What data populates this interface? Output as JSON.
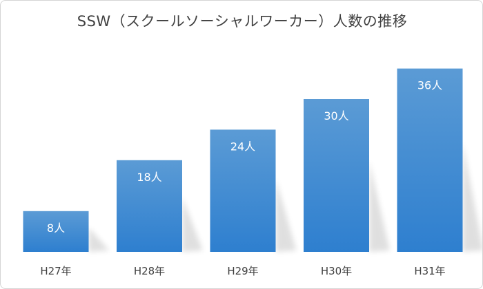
{
  "chart_data": {
    "type": "bar",
    "title": "SSW（スクールソーシャルワーカー）人数の推移",
    "categories": [
      "H27年",
      "H28年",
      "H29年",
      "H30年",
      "H31年"
    ],
    "values": [
      8,
      18,
      24,
      30,
      36
    ],
    "data_labels": [
      "8人",
      "18人",
      "24人",
      "30人",
      "36人"
    ],
    "xlabel": "",
    "ylabel": "",
    "ylim": [
      0,
      40
    ],
    "grid": false,
    "legend": "none",
    "bar_color_top": "#5b9bd5",
    "bar_color_bottom": "#2e7fcf"
  }
}
